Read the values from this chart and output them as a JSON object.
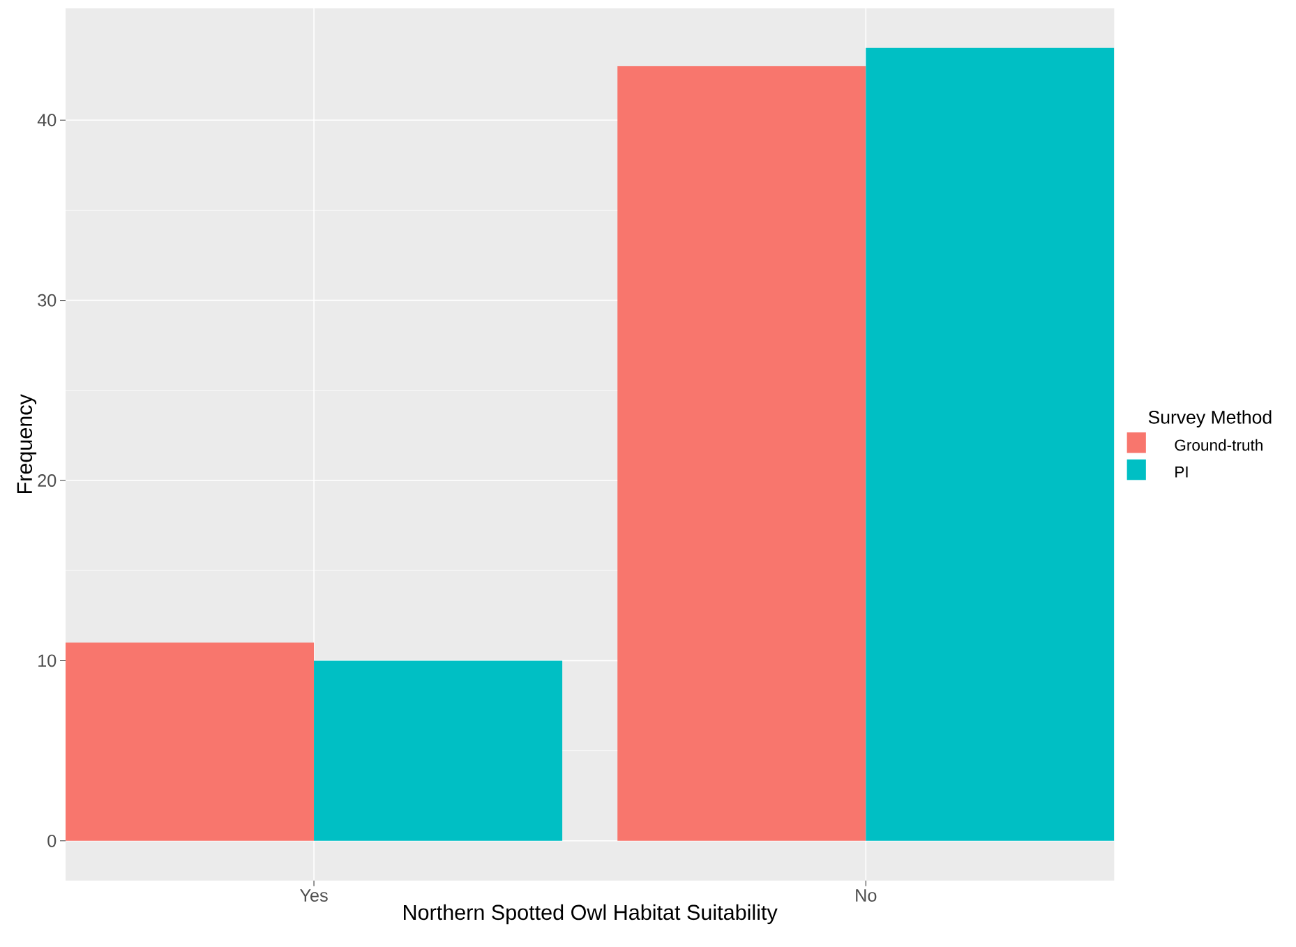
{
  "chart_data": {
    "type": "bar",
    "xlabel": "Northern Spotted Owl Habitat Suitability",
    "ylabel": "Frequency",
    "legend_title": "Survey Method",
    "categories": [
      "Yes",
      "No"
    ],
    "series": [
      {
        "name": "Ground-truth",
        "color": "#f8766d",
        "values": [
          11,
          43
        ]
      },
      {
        "name": "PI",
        "color": "#00bfc4",
        "values": [
          10,
          44
        ]
      }
    ],
    "ylim": [
      -2.2,
      46.2
    ],
    "yticks": [
      0,
      10,
      20,
      30,
      40
    ],
    "grid": true,
    "legend": "right"
  }
}
